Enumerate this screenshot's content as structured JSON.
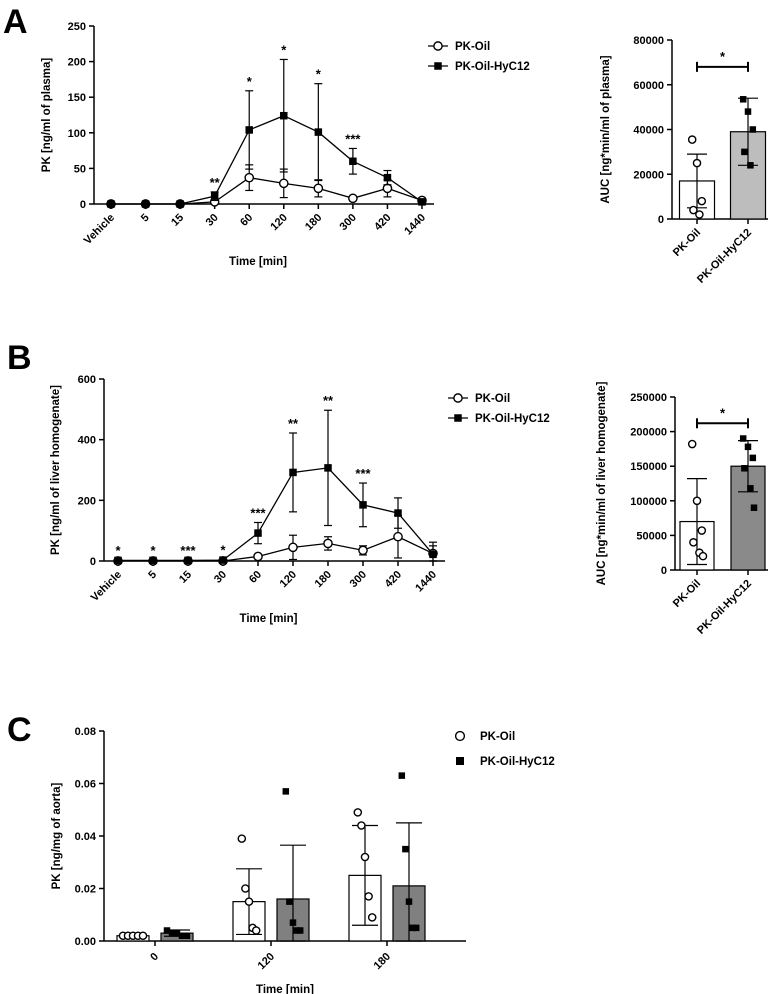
{
  "panels": [
    {
      "label": "A",
      "line": {
        "type": "line",
        "categories": [
          "Vehicle",
          "5",
          "15",
          "30",
          "60",
          "120",
          "180",
          "300",
          "420",
          "1440"
        ],
        "ylim": [
          0,
          250
        ],
        "yticks": [
          "0",
          "50",
          "100",
          "150",
          "200",
          "250"
        ],
        "ylabel": "PK [ng/ml of plasma]",
        "xlabel": "Time [min]",
        "series": [
          {
            "name": "PK-Oil",
            "marker": "open-circle",
            "values": [
              0,
              0,
              0,
              3,
              37,
              29,
              22,
              8,
              22,
              5
            ],
            "err": [
              0,
              0,
              0,
              2,
              18,
              20,
              12,
              2,
              12,
              3
            ]
          },
          {
            "name": "PK-Oil-HyC12",
            "marker": "filled-square",
            "values": [
              0,
              0,
              0,
              11,
              104,
              124,
              101,
              60,
              37,
              3
            ],
            "err": [
              0,
              0,
              0,
              6,
              55,
              79,
              68,
              18,
              10,
              3
            ]
          }
        ],
        "sig": [
          {
            "index": 3,
            "text": "**",
            "ref": 17
          },
          {
            "index": 4,
            "text": "*",
            "ref": 159
          },
          {
            "index": 5,
            "text": "*",
            "ref": 203
          },
          {
            "index": 6,
            "text": "*",
            "ref": 169
          },
          {
            "index": 7,
            "text": "***",
            "ref": 78
          }
        ]
      },
      "auc": {
        "type": "bar",
        "categories": [
          "PK-Oil",
          "PK-Oil-HyC12"
        ],
        "ylim": [
          0,
          80000
        ],
        "yticks": [
          "0",
          "20000",
          "40000",
          "60000",
          "80000"
        ],
        "ylabel": "AUC [ng*min/ml of plasma]",
        "means": [
          17000,
          39000
        ],
        "sd": [
          12000,
          15000
        ],
        "points": [
          [
            35500,
            25000,
            8000,
            4000,
            2000
          ],
          [
            53500,
            48000,
            40000,
            30000,
            24000
          ]
        ],
        "sig": "*",
        "sig_y": 68000
      }
    },
    {
      "label": "B",
      "line": {
        "type": "line",
        "categories": [
          "Vehicle",
          "5",
          "15",
          "30",
          "60",
          "120",
          "180",
          "300",
          "420",
          "1440"
        ],
        "ylim": [
          0,
          600
        ],
        "yticks": [
          "0",
          "200",
          "400",
          "600"
        ],
        "ylabel": "PK [ng/ml of liver homogenate]",
        "xlabel": "Time [min]",
        "series": [
          {
            "name": "PK-Oil",
            "marker": "open-circle",
            "values": [
              0,
              0,
              0,
              0,
              15,
              45,
              58,
              35,
              80,
              25
            ],
            "err": [
              0,
              0,
              0,
              0,
              4,
              40,
              22,
              15,
              70,
              25
            ]
          },
          {
            "name": "PK-Oil-HyC12",
            "marker": "filled-square",
            "values": [
              2,
              2,
              2,
              3,
              92,
              292,
              307,
              185,
              158,
              22
            ],
            "err": [
              1,
              1,
              1,
              2,
              35,
              130,
              190,
              72,
              50,
              40
            ]
          }
        ],
        "sig": [
          {
            "index": 0,
            "text": "*",
            "ref": 3
          },
          {
            "index": 1,
            "text": "*",
            "ref": 3
          },
          {
            "index": 2,
            "text": "***",
            "ref": 3
          },
          {
            "index": 3,
            "text": "*",
            "ref": 5
          },
          {
            "index": 4,
            "text": "***",
            "ref": 127
          },
          {
            "index": 5,
            "text": "**",
            "ref": 422
          },
          {
            "index": 6,
            "text": "**",
            "ref": 497
          },
          {
            "index": 7,
            "text": "***",
            "ref": 257
          }
        ]
      },
      "auc": {
        "type": "bar",
        "categories": [
          "PK-Oil",
          "PK-Oil-HyC12"
        ],
        "ylim": [
          0,
          250000
        ],
        "yticks": [
          "0",
          "50000",
          "100000",
          "150000",
          "200000",
          "250000"
        ],
        "ylabel": "AUC [ng*min/ml of liver homogenate]",
        "means": [
          70000,
          150000
        ],
        "sd": [
          62000,
          37000
        ],
        "points": [
          [
            182000,
            100000,
            57000,
            40000,
            25000,
            20000
          ],
          [
            190000,
            178000,
            162000,
            147000,
            118000,
            90000
          ]
        ],
        "sig": "*",
        "sig_y": 212000
      }
    },
    {
      "label": "C",
      "bars": {
        "type": "bar",
        "categories": [
          "0",
          "120",
          "180"
        ],
        "ylim": [
          0,
          0.08
        ],
        "yticks": [
          "0.00",
          "0.02",
          "0.04",
          "0.06",
          "0.08"
        ],
        "ylabel": "PK [ng/mg of aorta]",
        "xlabel": "Time [min]",
        "series": [
          {
            "name": "PK-Oil",
            "marker": "open-circle",
            "means": [
              0.002,
              0.015,
              0.025
            ],
            "sd": [
              0.0003,
              0.0125,
              0.019
            ],
            "points": [
              [
                0.002,
                0.002,
                0.002,
                0.002,
                0.002
              ],
              [
                0.039,
                0.02,
                0.015,
                0.005,
                0.004
              ],
              [
                0.049,
                0.044,
                0.032,
                0.017,
                0.009
              ]
            ]
          },
          {
            "name": "PK-Oil-HyC12",
            "marker": "filled-square",
            "means": [
              0.003,
              0.016,
              0.021
            ],
            "sd": [
              0.0012,
              0.0205,
              0.024
            ],
            "points": [
              [
                0.004,
                0.003,
                0.003,
                0.002,
                0.002
              ],
              [
                0.057,
                0.015,
                0.007,
                0.004,
                0.004
              ],
              [
                0.063,
                0.035,
                0.015,
                0.005,
                0.005
              ]
            ]
          }
        ]
      }
    }
  ],
  "chart_data": [
    {
      "type": "line",
      "title": "A",
      "categories": [
        "Vehicle",
        "5",
        "15",
        "30",
        "60",
        "120",
        "180",
        "300",
        "420",
        "1440"
      ],
      "xlabel": "Time [min]",
      "ylabel": "PK [ng/ml of plasma]",
      "ylim": [
        0,
        250
      ],
      "series": [
        {
          "name": "PK-Oil",
          "values": [
            0,
            0,
            0,
            3,
            37,
            29,
            22,
            8,
            22,
            5
          ]
        },
        {
          "name": "PK-Oil-HyC12",
          "values": [
            0,
            0,
            0,
            11,
            104,
            124,
            101,
            60,
            37,
            3
          ]
        }
      ]
    },
    {
      "type": "bar",
      "title": "A (AUC)",
      "categories": [
        "PK-Oil",
        "PK-Oil-HyC12"
      ],
      "values": [
        17000,
        39000
      ],
      "ylabel": "AUC [ng*min/ml of plasma]",
      "ylim": [
        0,
        80000
      ]
    },
    {
      "type": "line",
      "title": "B",
      "categories": [
        "Vehicle",
        "5",
        "15",
        "30",
        "60",
        "120",
        "180",
        "300",
        "420",
        "1440"
      ],
      "xlabel": "Time [min]",
      "ylabel": "PK [ng/ml of liver homogenate]",
      "ylim": [
        0,
        600
      ],
      "series": [
        {
          "name": "PK-Oil",
          "values": [
            0,
            0,
            0,
            0,
            15,
            45,
            58,
            35,
            80,
            25
          ]
        },
        {
          "name": "PK-Oil-HyC12",
          "values": [
            2,
            2,
            2,
            3,
            92,
            292,
            307,
            185,
            158,
            22
          ]
        }
      ]
    },
    {
      "type": "bar",
      "title": "B (AUC)",
      "categories": [
        "PK-Oil",
        "PK-Oil-HyC12"
      ],
      "values": [
        70000,
        150000
      ],
      "ylabel": "AUC [ng*min/ml of liver homogenate]",
      "ylim": [
        0,
        250000
      ]
    },
    {
      "type": "bar",
      "title": "C",
      "categories": [
        "0",
        "120",
        "180"
      ],
      "xlabel": "Time [min]",
      "ylabel": "PK [ng/mg of aorta]",
      "ylim": [
        0,
        0.08
      ],
      "series": [
        {
          "name": "PK-Oil",
          "values": [
            0.002,
            0.015,
            0.025
          ]
        },
        {
          "name": "PK-Oil-HyC12",
          "values": [
            0.003,
            0.016,
            0.021
          ]
        }
      ]
    }
  ],
  "colors": {
    "axis": "#000000",
    "oil_bar": "#ffffff",
    "auc_a_bar": "#bdbdbd",
    "auc_b_bar": "#8a8a8a",
    "c_bar": "#808080"
  }
}
